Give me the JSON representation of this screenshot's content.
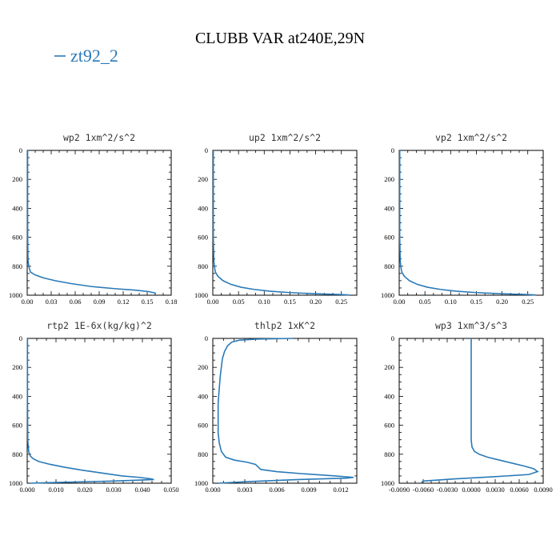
{
  "figure": {
    "title": "CLUBB VAR at240E,29N",
    "legend": {
      "label": "zt92_2",
      "color": "#2a7ab8"
    }
  },
  "chart_data": [
    {
      "type": "line",
      "name": "wp2",
      "title": "wp2   1xm^2/s^2",
      "xlim": [
        0,
        0.18
      ],
      "ylim": [
        1000,
        0
      ],
      "xticks": [
        0,
        0.03,
        0.06,
        0.09,
        0.12,
        0.15,
        0.18
      ],
      "xticklabels": [
        "0.00",
        "0.03",
        "0.06",
        "0.09",
        "0.12",
        "0.15",
        "0.18"
      ],
      "yticks": [
        0,
        200,
        400,
        600,
        800,
        1000
      ],
      "yticklabels": [
        "0",
        "200",
        "400",
        "600",
        "800",
        "1000"
      ],
      "series": [
        {
          "name": "zt92_2",
          "x": [
            0.0005,
            0.0005,
            0.0005,
            0.0006,
            0.001,
            0.002,
            0.004,
            0.01,
            0.02,
            0.035,
            0.055,
            0.08,
            0.11,
            0.135,
            0.152,
            0.16,
            0.16
          ],
          "y": [
            0,
            200,
            400,
            600,
            760,
            800,
            840,
            860,
            880,
            900,
            920,
            940,
            955,
            965,
            975,
            985,
            993
          ]
        }
      ]
    },
    {
      "type": "line",
      "name": "up2",
      "title": "up2   1xm^2/s^2",
      "xlim": [
        0,
        0.28
      ],
      "ylim": [
        1000,
        0
      ],
      "xticks": [
        0,
        0.05,
        0.1,
        0.15,
        0.2,
        0.25
      ],
      "xticklabels": [
        "0.00",
        "0.05",
        "0.10",
        "0.15",
        "0.20",
        "0.25"
      ],
      "yticks": [
        0,
        200,
        400,
        600,
        800,
        1000
      ],
      "yticklabels": [
        "0",
        "200",
        "400",
        "600",
        "800",
        "1000"
      ],
      "series": [
        {
          "name": "zt92_2",
          "x": [
            0.001,
            0.001,
            0.001,
            0.001,
            0.002,
            0.003,
            0.005,
            0.01,
            0.02,
            0.035,
            0.055,
            0.08,
            0.11,
            0.15,
            0.2,
            0.245,
            0.265
          ],
          "y": [
            0,
            200,
            400,
            600,
            760,
            800,
            840,
            870,
            900,
            925,
            945,
            960,
            972,
            982,
            990,
            995,
            998
          ]
        }
      ]
    },
    {
      "type": "line",
      "name": "vp2",
      "title": "vp2   1xm^2/s^2",
      "xlim": [
        0,
        0.28
      ],
      "ylim": [
        1000,
        0
      ],
      "xticks": [
        0,
        0.05,
        0.1,
        0.15,
        0.2,
        0.25
      ],
      "xticklabels": [
        "0.00",
        "0.05",
        "0.10",
        "0.15",
        "0.20",
        "0.25"
      ],
      "yticks": [
        0,
        200,
        400,
        600,
        800,
        1000
      ],
      "yticklabels": [
        "0",
        "200",
        "400",
        "600",
        "800",
        "1000"
      ],
      "series": [
        {
          "name": "zt92_2",
          "x": [
            0.001,
            0.001,
            0.001,
            0.001,
            0.002,
            0.003,
            0.005,
            0.01,
            0.02,
            0.035,
            0.055,
            0.08,
            0.11,
            0.15,
            0.2,
            0.245,
            0.265
          ],
          "y": [
            0,
            200,
            400,
            600,
            760,
            800,
            840,
            870,
            900,
            925,
            945,
            960,
            972,
            982,
            990,
            995,
            998
          ]
        }
      ]
    },
    {
      "type": "line",
      "name": "rtp2",
      "title": "rtp2   1E-6x(kg/kg)^2",
      "xlim": [
        0,
        0.05
      ],
      "ylim": [
        1000,
        0
      ],
      "xticks": [
        0,
        0.01,
        0.02,
        0.03,
        0.04,
        0.05
      ],
      "xticklabels": [
        "0.000",
        "0.010",
        "0.020",
        "0.030",
        "0.040",
        "0.050"
      ],
      "yticks": [
        0,
        200,
        400,
        600,
        800,
        1000
      ],
      "yticklabels": [
        "0",
        "200",
        "400",
        "600",
        "800",
        "1000"
      ],
      "series": [
        {
          "name": "zt92_2",
          "x": [
            0.0001,
            0.0001,
            0.0002,
            0.0005,
            0.001,
            0.002,
            0.004,
            0.008,
            0.013,
            0.019,
            0.026,
            0.033,
            0.039,
            0.043,
            0.044,
            0.03,
            0.01,
            0.001
          ],
          "y": [
            0,
            400,
            700,
            780,
            810,
            830,
            850,
            870,
            890,
            910,
            930,
            950,
            960,
            970,
            975,
            985,
            995,
            1000
          ]
        }
      ]
    },
    {
      "type": "line",
      "name": "thlp2",
      "title": "thlp2   1xK^2",
      "xlim": [
        0,
        0.0135
      ],
      "ylim": [
        1000,
        0
      ],
      "xticks": [
        0,
        0.003,
        0.006,
        0.009,
        0.012
      ],
      "xticklabels": [
        "0.000",
        "0.003",
        "0.006",
        "0.009",
        "0.012"
      ],
      "yticks": [
        0,
        200,
        400,
        600,
        800,
        1000
      ],
      "yticklabels": [
        "0",
        "200",
        "400",
        "600",
        "800",
        "1000"
      ],
      "series": [
        {
          "name": "zt92_2",
          "x": [
            0.0075,
            0.004,
            0.0025,
            0.0018,
            0.0014,
            0.0011,
            0.0009,
            0.0008,
            0.0007,
            0.0006,
            0.0005,
            0.0005,
            0.0005,
            0.0006,
            0.0008,
            0.0012,
            0.002,
            0.0032,
            0.004,
            0.0045,
            0.006,
            0.0085,
            0.0115,
            0.0132,
            0.0125,
            0.008,
            0.003,
            0.0005
          ],
          "y": [
            0,
            5,
            12,
            25,
            50,
            90,
            140,
            200,
            260,
            350,
            450,
            550,
            650,
            720,
            780,
            820,
            840,
            855,
            870,
            905,
            920,
            935,
            950,
            960,
            965,
            975,
            990,
            1000
          ]
        }
      ]
    },
    {
      "type": "line",
      "name": "wp3",
      "title": "wp3   1xm^3/s^3",
      "xlim": [
        -0.009,
        0.009
      ],
      "ylim": [
        1000,
        0
      ],
      "xticks": [
        -0.009,
        -0.006,
        -0.003,
        0,
        0.003,
        0.006,
        0.009
      ],
      "xticklabels": [
        "-0.0090",
        "-0.0060",
        "-0.0030",
        "0.0000",
        "0.0030",
        "0.0060",
        "0.0090"
      ],
      "yticks": [
        0,
        200,
        400,
        600,
        800,
        1000
      ],
      "yticklabels": [
        "0",
        "200",
        "400",
        "600",
        "800",
        "1000"
      ],
      "series": [
        {
          "name": "zt92_2",
          "x": [
            0,
            0,
            0,
            0.0001,
            0.0004,
            0.001,
            0.002,
            0.0035,
            0.005,
            0.0065,
            0.0078,
            0.0083,
            0.0072,
            0.003,
            -0.002,
            -0.006,
            -0.0062
          ],
          "y": [
            0,
            400,
            700,
            750,
            780,
            800,
            820,
            840,
            860,
            880,
            900,
            920,
            940,
            955,
            970,
            985,
            995
          ]
        }
      ]
    }
  ]
}
